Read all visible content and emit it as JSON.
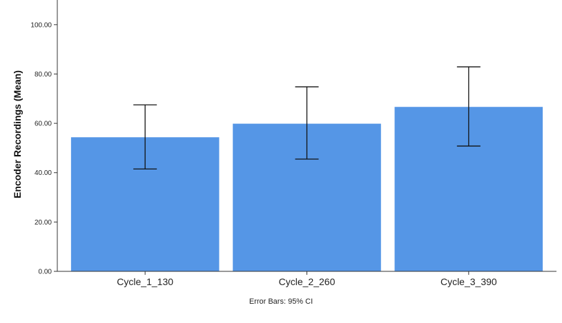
{
  "chart_data": {
    "type": "bar",
    "categories": [
      "Cycle_1_130",
      "Cycle_2_260",
      "Cycle_3_390"
    ],
    "values": [
      54.5,
      60.0,
      66.8
    ],
    "error_bars": {
      "lower": [
        41.5,
        45.5,
        50.8
      ],
      "upper": [
        67.5,
        74.8,
        82.9
      ]
    },
    "ylabel": "Encoder Recordings (Mean)",
    "xlabel": "",
    "ylim": [
      0,
      110
    ],
    "yticks": [
      "0.00",
      "20.00",
      "40.00",
      "60.00",
      "80.00",
      "100.00"
    ],
    "ytick_values": [
      0,
      20,
      40,
      60,
      80,
      100
    ],
    "footnote": "Error Bars: 95% CI",
    "grid": false,
    "colors": {
      "bar": "#5596e6",
      "bar_edge": "#ffffff",
      "axis": "#333333",
      "error_bar": "#111111"
    }
  }
}
